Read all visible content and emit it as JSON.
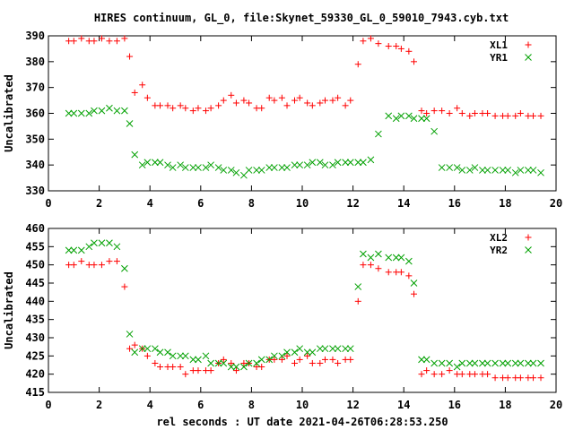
{
  "chart_data": [
    {
      "type": "scatter",
      "title": "HIRES continuum, GL_0, file:Skynet_59330_GL_0_59010_7943.cyb.txt",
      "xlabel": "",
      "ylabel": "Uncalibrated",
      "xlim": [
        0,
        20
      ],
      "ylim": [
        330,
        390
      ],
      "xticks": [
        0,
        2,
        4,
        6,
        8,
        10,
        12,
        14,
        16,
        18,
        20
      ],
      "yticks": [
        330,
        340,
        350,
        360,
        370,
        380,
        390
      ],
      "legend_position": "top-right",
      "grid": false,
      "series": [
        {
          "name": "XL1",
          "marker": "plus",
          "color": "#ff0000",
          "x": [
            0.8,
            1.0,
            1.3,
            1.6,
            1.8,
            2.1,
            2.4,
            2.7,
            3.0,
            3.2,
            3.4,
            3.7,
            3.9,
            4.2,
            4.4,
            4.7,
            4.9,
            5.2,
            5.4,
            5.7,
            5.9,
            6.2,
            6.4,
            6.7,
            6.9,
            7.2,
            7.4,
            7.7,
            7.9,
            8.2,
            8.4,
            8.7,
            8.9,
            9.2,
            9.4,
            9.7,
            9.9,
            10.2,
            10.4,
            10.7,
            10.9,
            11.2,
            11.4,
            11.7,
            11.9,
            12.2,
            12.4,
            12.7,
            13.0,
            13.4,
            13.7,
            13.9,
            14.2,
            14.4,
            14.7,
            14.9,
            15.2,
            15.5,
            15.8,
            16.1,
            16.3,
            16.6,
            16.8,
            17.1,
            17.3,
            17.6,
            17.9,
            18.1,
            18.4,
            18.6,
            18.9,
            19.1,
            19.4
          ],
          "y": [
            388,
            388,
            389,
            388,
            388,
            389,
            388,
            388,
            389,
            382,
            368,
            371,
            366,
            363,
            363,
            363,
            362,
            363,
            362,
            361,
            362,
            361,
            362,
            363,
            365,
            367,
            364,
            365,
            364,
            362,
            362,
            366,
            365,
            366,
            363,
            365,
            366,
            364,
            363,
            364,
            365,
            365,
            366,
            363,
            365,
            379,
            388,
            389,
            387,
            386,
            386,
            385,
            384,
            380,
            361,
            360,
            361,
            361,
            360,
            362,
            360,
            359,
            360,
            360,
            360,
            359,
            359,
            359,
            359,
            360,
            359,
            359,
            359
          ],
          "x_note": "",
          "y_note": ""
        },
        {
          "name": "YR1",
          "marker": "cross",
          "color": "#00a000",
          "x": [
            0.8,
            1.0,
            1.3,
            1.6,
            1.8,
            2.1,
            2.4,
            2.7,
            3.0,
            3.2,
            3.4,
            3.7,
            3.9,
            4.2,
            4.4,
            4.7,
            4.9,
            5.2,
            5.4,
            5.7,
            5.9,
            6.2,
            6.4,
            6.7,
            6.9,
            7.2,
            7.4,
            7.7,
            7.9,
            8.2,
            8.4,
            8.7,
            8.9,
            9.2,
            9.4,
            9.7,
            9.9,
            10.2,
            10.4,
            10.7,
            10.9,
            11.2,
            11.4,
            11.7,
            11.9,
            12.2,
            12.4,
            12.7,
            13.0,
            13.4,
            13.7,
            13.9,
            14.2,
            14.4,
            14.7,
            14.9,
            15.2,
            15.5,
            15.8,
            16.1,
            16.3,
            16.6,
            16.8,
            17.1,
            17.3,
            17.6,
            17.9,
            18.1,
            18.4,
            18.6,
            18.9,
            19.1,
            19.4
          ],
          "y": [
            360,
            360,
            360,
            360,
            361,
            361,
            362,
            361,
            361,
            356,
            344,
            340,
            341,
            341,
            341,
            340,
            339,
            340,
            339,
            339,
            339,
            339,
            340,
            339,
            338,
            338,
            337,
            336,
            338,
            338,
            338,
            339,
            339,
            339,
            339,
            340,
            340,
            340,
            341,
            341,
            340,
            340,
            341,
            341,
            341,
            341,
            341,
            342,
            352,
            359,
            358,
            359,
            359,
            358,
            358,
            358,
            353,
            339,
            339,
            339,
            338,
            338,
            339,
            338,
            338,
            338,
            338,
            338,
            337,
            338,
            338,
            338,
            337
          ]
        }
      ]
    },
    {
      "type": "scatter",
      "title": "",
      "xlabel": "rel seconds : UT date 2021-04-26T06:28:53.250",
      "ylabel": "Uncalibrated",
      "xlim": [
        0,
        20
      ],
      "ylim": [
        415,
        460
      ],
      "xticks": [
        0,
        2,
        4,
        6,
        8,
        10,
        12,
        14,
        16,
        18,
        20
      ],
      "yticks": [
        415,
        420,
        425,
        430,
        435,
        440,
        445,
        450,
        455,
        460
      ],
      "legend_position": "top-right",
      "grid": false,
      "series": [
        {
          "name": "XL2",
          "marker": "plus",
          "color": "#ff0000",
          "x": [
            0.8,
            1.0,
            1.3,
            1.6,
            1.8,
            2.1,
            2.4,
            2.7,
            3.0,
            3.2,
            3.4,
            3.7,
            3.9,
            4.2,
            4.4,
            4.7,
            4.9,
            5.2,
            5.4,
            5.7,
            5.9,
            6.2,
            6.4,
            6.7,
            6.9,
            7.2,
            7.4,
            7.7,
            7.9,
            8.2,
            8.4,
            8.7,
            8.9,
            9.2,
            9.4,
            9.7,
            9.9,
            10.2,
            10.4,
            10.7,
            10.9,
            11.2,
            11.4,
            11.7,
            11.9,
            12.2,
            12.4,
            12.7,
            13.0,
            13.4,
            13.7,
            13.9,
            14.2,
            14.4,
            14.7,
            14.9,
            15.2,
            15.5,
            15.8,
            16.1,
            16.3,
            16.6,
            16.8,
            17.1,
            17.3,
            17.6,
            17.9,
            18.1,
            18.4,
            18.6,
            18.9,
            19.1,
            19.4
          ],
          "y": [
            450,
            450,
            451,
            450,
            450,
            450,
            451,
            451,
            444,
            427,
            428,
            427,
            425,
            423,
            422,
            422,
            422,
            422,
            420,
            421,
            421,
            421,
            421,
            423,
            424,
            423,
            421,
            423,
            423,
            422,
            422,
            424,
            424,
            424,
            425,
            423,
            424,
            425,
            423,
            423,
            424,
            424,
            423,
            424,
            424,
            440,
            450,
            450,
            449,
            448,
            448,
            448,
            447,
            442,
            420,
            421,
            420,
            420,
            421,
            420,
            420,
            420,
            420,
            420,
            420,
            419,
            419,
            419,
            419,
            419,
            419,
            419,
            419
          ]
        },
        {
          "name": "YR2",
          "marker": "cross",
          "color": "#00a000",
          "x": [
            0.8,
            1.0,
            1.3,
            1.6,
            1.8,
            2.1,
            2.4,
            2.7,
            3.0,
            3.2,
            3.4,
            3.7,
            3.9,
            4.2,
            4.4,
            4.7,
            4.9,
            5.2,
            5.4,
            5.7,
            5.9,
            6.2,
            6.4,
            6.7,
            6.9,
            7.2,
            7.4,
            7.7,
            7.9,
            8.2,
            8.4,
            8.7,
            8.9,
            9.2,
            9.4,
            9.7,
            9.9,
            10.2,
            10.4,
            10.7,
            10.9,
            11.2,
            11.4,
            11.7,
            11.9,
            12.2,
            12.4,
            12.7,
            13.0,
            13.4,
            13.7,
            13.9,
            14.2,
            14.4,
            14.7,
            14.9,
            15.2,
            15.5,
            15.8,
            16.1,
            16.3,
            16.6,
            16.8,
            17.1,
            17.3,
            17.6,
            17.9,
            18.1,
            18.4,
            18.6,
            18.9,
            19.1,
            19.4
          ],
          "y": [
            454,
            454,
            454,
            455,
            456,
            456,
            456,
            455,
            449,
            431,
            426,
            427,
            427,
            427,
            426,
            426,
            425,
            425,
            425,
            424,
            424,
            425,
            423,
            423,
            423,
            422,
            422,
            422,
            423,
            423,
            424,
            424,
            425,
            425,
            426,
            426,
            427,
            426,
            426,
            427,
            427,
            427,
            427,
            427,
            427,
            444,
            453,
            452,
            453,
            452,
            452,
            452,
            451,
            445,
            424,
            424,
            423,
            423,
            423,
            422,
            423,
            423,
            423,
            423,
            423,
            423,
            423,
            423,
            423,
            423,
            423,
            423,
            423
          ]
        }
      ]
    }
  ]
}
